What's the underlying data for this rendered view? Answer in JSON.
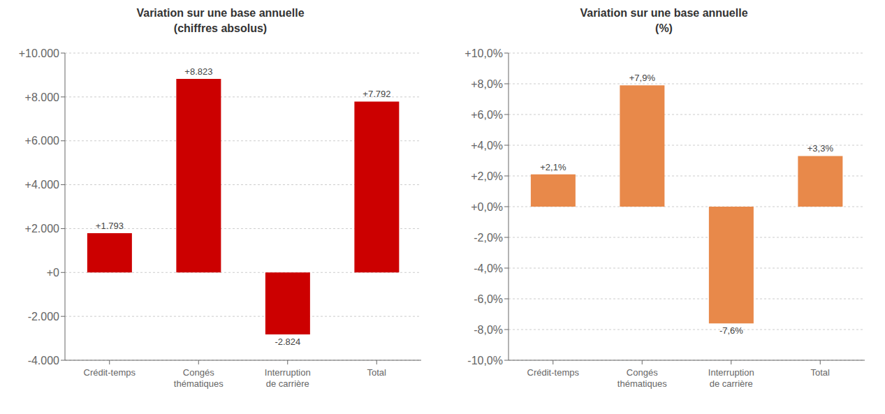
{
  "chart_data": [
    {
      "type": "bar",
      "title": "Variation sur une base annuelle\n(chiffres absolus)",
      "categories": [
        "Crédit-temps",
        "Congés\nthématiques",
        "Interruption\nde carrière",
        "Total"
      ],
      "values": [
        1793,
        8823,
        -2824,
        7792
      ],
      "value_labels": [
        "+1.793",
        "+8.823",
        "-2.824",
        "+7.792"
      ],
      "color": "#cc0000",
      "ylim": [
        -4000,
        10000
      ],
      "yticks": [
        {
          "value": -4000,
          "label": "-4.000"
        },
        {
          "value": -2000,
          "label": "-2.000"
        },
        {
          "value": 0,
          "label": "+0"
        },
        {
          "value": 2000,
          "label": "+2.000"
        },
        {
          "value": 4000,
          "label": "+4.000"
        },
        {
          "value": 6000,
          "label": "+6.000"
        },
        {
          "value": 8000,
          "label": "+8.000"
        },
        {
          "value": 10000,
          "label": "+10.000"
        }
      ],
      "grid": true,
      "data_labels": true
    },
    {
      "type": "bar",
      "title": "Variation sur une base annuelle\n(%)",
      "categories": [
        "Crédit-temps",
        "Congés\nthématiques",
        "Interruption\nde carrière",
        "Total"
      ],
      "values": [
        2.1,
        7.9,
        -7.6,
        3.3
      ],
      "value_labels": [
        "+2,1%",
        "+7,9%",
        "-7,6%",
        "+3,3%"
      ],
      "color": "#e8894a",
      "ylim": [
        -10.0,
        10.0
      ],
      "yticks": [
        {
          "value": -10.0,
          "label": "-10,0%"
        },
        {
          "value": -8.0,
          "label": "-8,0%"
        },
        {
          "value": -6.0,
          "label": "-6,0%"
        },
        {
          "value": -4.0,
          "label": "-4,0%"
        },
        {
          "value": -2.0,
          "label": "-2,0%"
        },
        {
          "value": 0.0,
          "label": "+0,0%"
        },
        {
          "value": 2.0,
          "label": "+2,0%"
        },
        {
          "value": 4.0,
          "label": "+4,0%"
        },
        {
          "value": 6.0,
          "label": "+6,0%"
        },
        {
          "value": 8.0,
          "label": "+8,0%"
        },
        {
          "value": 10.0,
          "label": "+10,0%"
        }
      ],
      "grid": true,
      "data_labels": true
    }
  ]
}
